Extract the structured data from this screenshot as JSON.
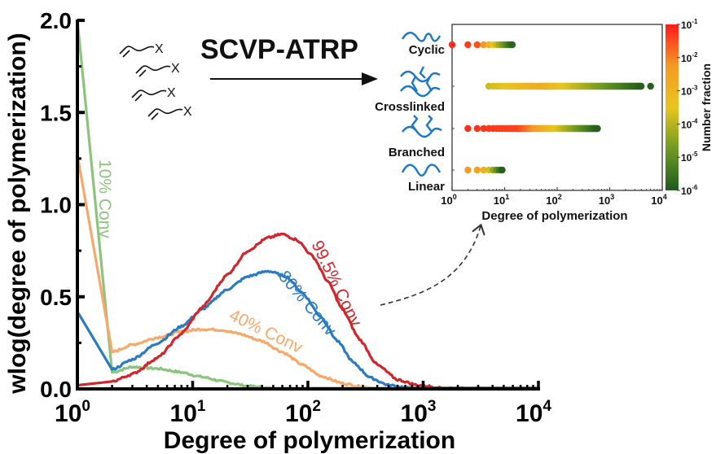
{
  "chart_data": [
    {
      "type": "line",
      "title": "",
      "xlabel": "Degree of polymerization",
      "ylabel": "wlog(degree of polymerization)",
      "xscale": "log",
      "xlim": [
        1,
        10000
      ],
      "ylim": [
        0,
        2.0
      ],
      "xticks": [
        {
          "value": 1,
          "base": "10",
          "exp": "0"
        },
        {
          "value": 10,
          "base": "10",
          "exp": "1"
        },
        {
          "value": 100,
          "base": "10",
          "exp": "2"
        },
        {
          "value": 1000,
          "base": "10",
          "exp": "3"
        },
        {
          "value": 10000,
          "base": "10",
          "exp": "4"
        }
      ],
      "yticks": [
        {
          "value": 0.0,
          "label": "0.0"
        },
        {
          "value": 0.5,
          "label": "0.5"
        },
        {
          "value": 1.0,
          "label": "1.0"
        },
        {
          "value": 1.5,
          "label": "1.5"
        },
        {
          "value": 2.0,
          "label": "2.0"
        }
      ],
      "grid": false,
      "series": [
        {
          "name": "10% Conv",
          "label": "10% Conv",
          "color": "#8cc47e",
          "points": [
            [
              1,
              2.0
            ],
            [
              2,
              0.09
            ],
            [
              3,
              0.12
            ],
            [
              5,
              0.11
            ],
            [
              8,
              0.09
            ],
            [
              12,
              0.065
            ],
            [
              20,
              0.035
            ],
            [
              30,
              0.015
            ],
            [
              50,
              0.004
            ],
            [
              80,
              0.0
            ],
            [
              10000,
              0.0
            ]
          ]
        },
        {
          "name": "40% Conv",
          "label": "40% Conv",
          "color": "#f5a96a",
          "points": [
            [
              1,
              1.27
            ],
            [
              2,
              0.2
            ],
            [
              3,
              0.24
            ],
            [
              5,
              0.28
            ],
            [
              8,
              0.31
            ],
            [
              12,
              0.325
            ],
            [
              18,
              0.32
            ],
            [
              25,
              0.3
            ],
            [
              40,
              0.26
            ],
            [
              60,
              0.2
            ],
            [
              90,
              0.13
            ],
            [
              130,
              0.07
            ],
            [
              200,
              0.03
            ],
            [
              300,
              0.01
            ],
            [
              500,
              0.0
            ],
            [
              10000,
              0.0
            ]
          ]
        },
        {
          "name": "80% Conv",
          "label": "80% Conv",
          "color": "#2a7bc0",
          "points": [
            [
              1,
              0.42
            ],
            [
              2,
              0.105
            ],
            [
              3,
              0.16
            ],
            [
              5,
              0.25
            ],
            [
              8,
              0.34
            ],
            [
              12,
              0.43
            ],
            [
              20,
              0.54
            ],
            [
              30,
              0.61
            ],
            [
              45,
              0.64
            ],
            [
              65,
              0.61
            ],
            [
              90,
              0.52
            ],
            [
              130,
              0.39
            ],
            [
              180,
              0.26
            ],
            [
              250,
              0.14
            ],
            [
              350,
              0.06
            ],
            [
              500,
              0.02
            ],
            [
              800,
              0.005
            ],
            [
              1200,
              0.0
            ],
            [
              10000,
              0.0
            ]
          ]
        },
        {
          "name": "99.5% Conv",
          "label": "99.5% Conv",
          "color": "#d0262c",
          "points": [
            [
              1,
              0.02
            ],
            [
              2,
              0.04
            ],
            [
              3,
              0.08
            ],
            [
              5,
              0.17
            ],
            [
              8,
              0.3
            ],
            [
              12,
              0.44
            ],
            [
              20,
              0.62
            ],
            [
              30,
              0.75
            ],
            [
              45,
              0.82
            ],
            [
              60,
              0.84
            ],
            [
              80,
              0.81
            ],
            [
              110,
              0.72
            ],
            [
              150,
              0.58
            ],
            [
              200,
              0.43
            ],
            [
              280,
              0.27
            ],
            [
              400,
              0.13
            ],
            [
              600,
              0.05
            ],
            [
              900,
              0.02
            ],
            [
              1500,
              0.006
            ],
            [
              3000,
              0.003
            ],
            [
              10000,
              0.002
            ]
          ]
        }
      ]
    },
    {
      "type": "scatter",
      "title": "",
      "xlabel": "Degree of polymerization",
      "xscale": "log",
      "xlim": [
        1,
        10000
      ],
      "xticks": [
        {
          "value": 1,
          "base": "10",
          "exp": "0"
        },
        {
          "value": 10,
          "base": "10",
          "exp": "1"
        },
        {
          "value": 100,
          "base": "10",
          "exp": "2"
        },
        {
          "value": 1000,
          "base": "10",
          "exp": "3"
        },
        {
          "value": 10000,
          "base": "10",
          "exp": "4"
        }
      ],
      "categories": [
        "Cyclic",
        "Crosslinked",
        "Branched",
        "Linear"
      ],
      "rows": [
        {
          "name": "Cyclic",
          "min": 1,
          "max": 14,
          "start_logfrac": -1.2,
          "end_logfrac": -5.8,
          "discrete_until": 6
        },
        {
          "name": "Crosslinked",
          "min": 5,
          "max": 4000,
          "outlier": 6000,
          "start_logfrac": -3.8,
          "mid_logfrac": -2.8,
          "end_logfrac": -5.9,
          "discrete_until": 0
        },
        {
          "name": "Branched",
          "min": 2,
          "max": 600,
          "start_logfrac": -1.2,
          "end_logfrac": -5.9,
          "discrete_until": 8
        },
        {
          "name": "Linear",
          "min": 2,
          "max": 9,
          "start_logfrac": -2.3,
          "end_logfrac": -5.9,
          "discrete_until": 6
        }
      ],
      "colorbar": {
        "label": "Number fraction",
        "scale": "log",
        "range": [
          1e-06,
          0.1
        ],
        "ticks": [
          {
            "base": "10",
            "exp": "-1"
          },
          {
            "base": "10",
            "exp": "-2"
          },
          {
            "base": "10",
            "exp": "-3"
          },
          {
            "base": "10",
            "exp": "-4"
          },
          {
            "base": "10",
            "exp": "-5"
          },
          {
            "base": "10",
            "exp": "-6"
          }
        ],
        "colors": [
          "#1e5a1e",
          "#6e9a22",
          "#e7c61f",
          "#f39a25",
          "#ff1a1a"
        ]
      }
    }
  ],
  "annotations": {
    "scheme_title": "SCVP-ATRP",
    "monomer_end_group": "X",
    "topology_labels": [
      "Cyclic",
      "Crosslinked",
      "Branched",
      "Linear"
    ]
  }
}
